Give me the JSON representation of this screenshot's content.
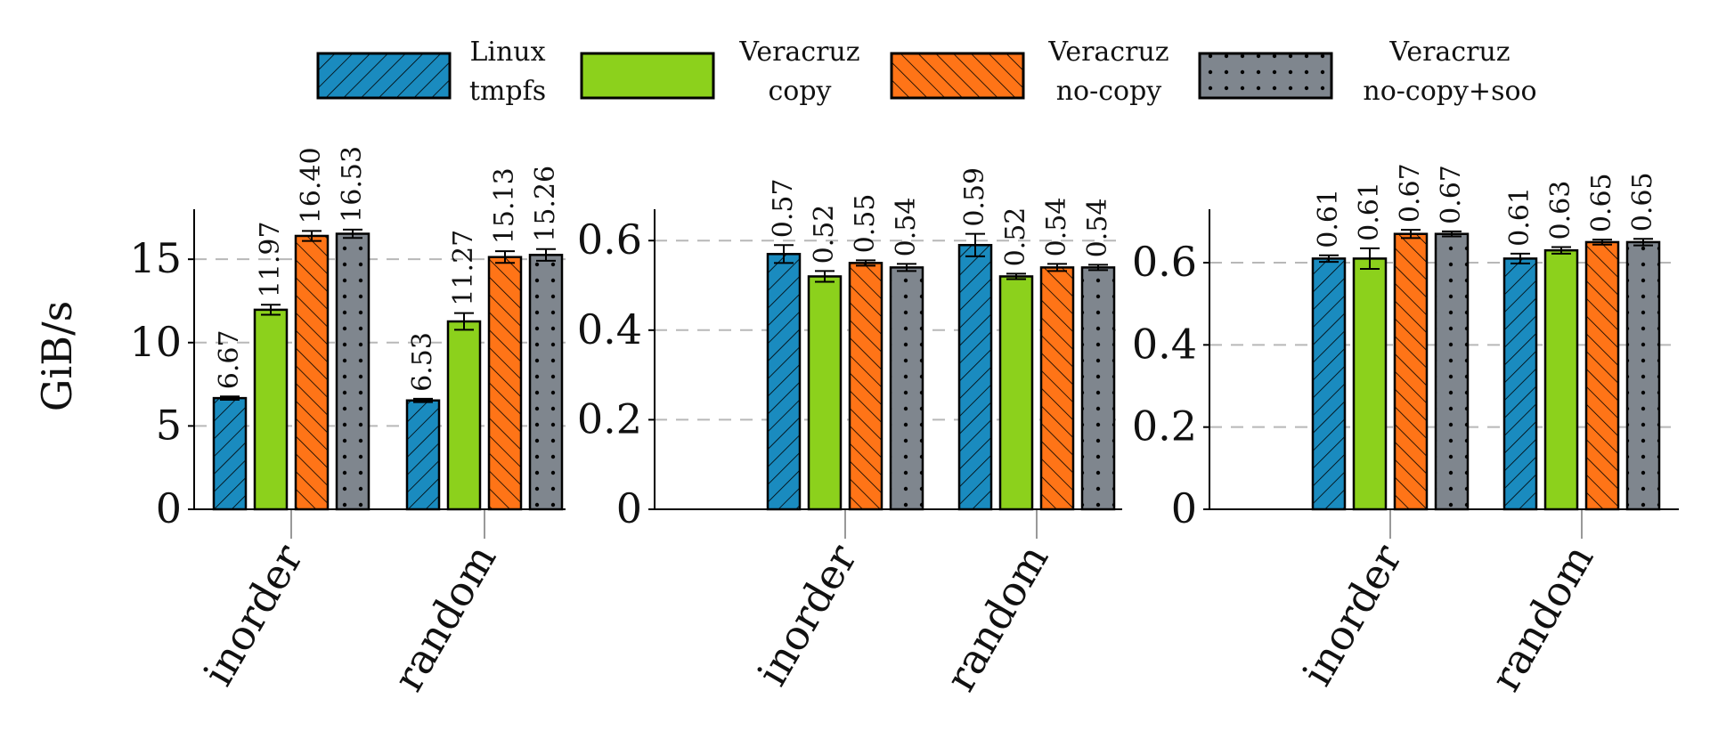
{
  "legend": {
    "items": [
      {
        "line1": "Linux",
        "line2": "tmpfs"
      },
      {
        "line1": "Veracruz",
        "line2": "copy"
      },
      {
        "line1": "Veracruz",
        "line2": "no-copy"
      },
      {
        "line1": "Veracruz",
        "line2": "no-copy+soo"
      }
    ]
  },
  "series_style": [
    {
      "color": "#1a8bbf",
      "pattern": "diagonal-ne"
    },
    {
      "color": "#8cd11c",
      "pattern": "solid"
    },
    {
      "color": "#ff7417",
      "pattern": "diagonal-nw"
    },
    {
      "color": "#7f868e",
      "pattern": "dots"
    }
  ],
  "chart_data": [
    {
      "type": "bar",
      "categories": [
        "inorder",
        "random"
      ],
      "ylabel": "GiB/s",
      "ylim": [
        0,
        18
      ],
      "yticks": [
        0,
        5,
        10,
        15
      ],
      "ytick_labels": [
        "0",
        "5",
        "10",
        "15"
      ],
      "grid": "dashed horizontal",
      "series": [
        {
          "values": [
            6.67,
            6.53
          ],
          "labels": [
            "6.67",
            "6.53"
          ],
          "err": [
            0.1,
            0.1
          ]
        },
        {
          "values": [
            11.97,
            11.27
          ],
          "labels": [
            "11.97",
            "11.27"
          ],
          "err": [
            0.3,
            0.5
          ]
        },
        {
          "values": [
            16.4,
            15.13
          ],
          "labels": [
            "16.40",
            "15.13"
          ],
          "err": [
            0.3,
            0.35
          ]
        },
        {
          "values": [
            16.53,
            15.26
          ],
          "labels": [
            "16.53",
            "15.26"
          ],
          "err": [
            0.25,
            0.35
          ]
        }
      ]
    },
    {
      "type": "bar",
      "categories": [
        "inorder",
        "random"
      ],
      "ylabel": "",
      "ylim": [
        0,
        0.67
      ],
      "yticks": [
        0,
        0.2,
        0.4,
        0.6
      ],
      "ytick_labels": [
        "0",
        "0.2",
        "0.4",
        "0.6"
      ],
      "grid": "dashed horizontal",
      "series": [
        {
          "values": [
            0.57,
            0.59
          ],
          "labels": [
            "0.57",
            "0.59"
          ],
          "err": [
            0.02,
            0.025
          ]
        },
        {
          "values": [
            0.52,
            0.52
          ],
          "labels": [
            "0.52",
            "0.52"
          ],
          "err": [
            0.012,
            0.006
          ]
        },
        {
          "values": [
            0.55,
            0.54
          ],
          "labels": [
            "0.55",
            "0.54"
          ],
          "err": [
            0.006,
            0.008
          ]
        },
        {
          "values": [
            0.54,
            0.54
          ],
          "labels": [
            "0.54",
            "0.54"
          ],
          "err": [
            0.008,
            0.006
          ]
        }
      ]
    },
    {
      "type": "bar",
      "categories": [
        "inorder",
        "random"
      ],
      "ylabel": "",
      "ylim": [
        0,
        0.73
      ],
      "yticks": [
        0,
        0.2,
        0.4,
        0.6
      ],
      "ytick_labels": [
        "0",
        "0.2",
        "0.4",
        "0.6"
      ],
      "grid": "dashed horizontal",
      "series": [
        {
          "values": [
            0.61,
            0.61
          ],
          "labels": [
            "0.61",
            "0.61"
          ],
          "err": [
            0.008,
            0.012
          ]
        },
        {
          "values": [
            0.61,
            0.63
          ],
          "labels": [
            "0.61",
            "0.63"
          ],
          "err": [
            0.025,
            0.008
          ]
        },
        {
          "values": [
            0.67,
            0.65
          ],
          "labels": [
            "0.67",
            "0.65"
          ],
          "err": [
            0.01,
            0.006
          ]
        },
        {
          "values": [
            0.67,
            0.65
          ],
          "labels": [
            "0.67",
            "0.65"
          ],
          "err": [
            0.006,
            0.008
          ]
        }
      ]
    }
  ]
}
